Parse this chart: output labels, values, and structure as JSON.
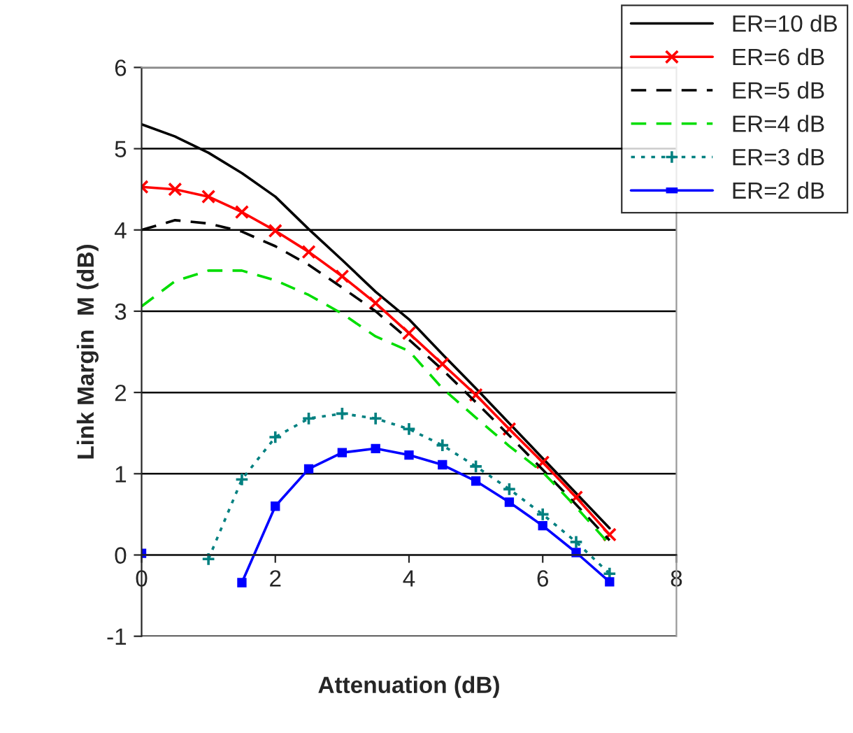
{
  "chart_data": {
    "type": "line",
    "xlabel": "Attenuation (dB)",
    "ylabel": "Link Margin  M (dB)",
    "x": [
      0,
      0.5,
      1,
      1.5,
      2,
      2.5,
      3,
      3.5,
      4,
      4.5,
      5,
      5.5,
      6,
      6.5,
      7
    ],
    "series": [
      {
        "name": "ER=10 dB",
        "color": "#000000",
        "line_style": "solid",
        "marker": "none",
        "values": [
          5.3,
          5.15,
          4.95,
          4.7,
          4.41,
          4.01,
          3.63,
          3.24,
          2.9,
          2.47,
          2.05,
          1.62,
          1.19,
          0.76,
          0.33
        ]
      },
      {
        "name": "ER=6 dB",
        "color": "#ff0000",
        "line_style": "solid",
        "marker": "cross",
        "values": [
          4.53,
          4.5,
          4.41,
          4.22,
          3.99,
          3.73,
          3.43,
          3.1,
          2.73,
          2.35,
          1.97,
          1.55,
          1.14,
          0.71,
          0.25
        ]
      },
      {
        "name": "ER=5 dB",
        "color": "#000000",
        "line_style": "dashed",
        "marker": "none",
        "values": [
          4.0,
          4.12,
          4.08,
          3.98,
          3.8,
          3.57,
          3.29,
          3.0,
          2.65,
          2.28,
          1.88,
          1.47,
          1.05,
          0.62,
          0.18
        ]
      },
      {
        "name": "ER=4 dB",
        "color": "#00dd00",
        "line_style": "dashed",
        "marker": "none",
        "values": [
          3.06,
          3.37,
          3.5,
          3.5,
          3.38,
          3.2,
          2.97,
          2.69,
          2.51,
          2.05,
          1.69,
          1.34,
          1.02,
          0.59,
          0.13
        ]
      },
      {
        "name": "ER=3 dB",
        "color": "#008080",
        "line_style": "dotted",
        "marker": "plus",
        "values": [
          null,
          null,
          -0.05,
          0.93,
          1.45,
          1.68,
          1.74,
          1.68,
          1.55,
          1.35,
          1.09,
          0.81,
          0.5,
          0.16,
          -0.23
        ]
      },
      {
        "name": "ER=2 dB",
        "color": "#0000ff",
        "line_style": "solid",
        "marker": "square",
        "values": [
          0.02,
          null,
          null,
          -0.34,
          0.6,
          1.06,
          1.26,
          1.31,
          1.23,
          1.11,
          0.91,
          0.65,
          0.36,
          0.03,
          -0.33
        ]
      }
    ],
    "xlim": [
      0,
      8
    ],
    "xticks": [
      0,
      2,
      4,
      6,
      8
    ],
    "ylim": [
      -1,
      6
    ],
    "yticks": [
      -1,
      0,
      1,
      2,
      3,
      4,
      5,
      6
    ],
    "grid": "y",
    "legend": "top right"
  }
}
